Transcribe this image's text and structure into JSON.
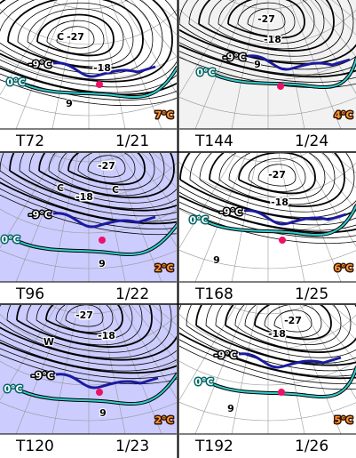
{
  "panels": [
    {
      "step": "T72",
      "date": "1/21",
      "temperature": "7°C",
      "contours": [
        "-27",
        "-18",
        "-9°C",
        "0°C",
        "9"
      ],
      "symbols": [
        "C"
      ]
    },
    {
      "step": "T144",
      "date": "1/24",
      "temperature": "4°C",
      "contours": [
        "-27",
        "-18",
        "-9°C",
        "0°C",
        "9"
      ],
      "symbols": []
    },
    {
      "step": "T96",
      "date": "1/22",
      "temperature": "2°C",
      "contours": [
        "-27",
        "-18",
        "-9°C",
        "0°C",
        "9"
      ],
      "symbols": [
        "C",
        "C"
      ]
    },
    {
      "step": "T168",
      "date": "1/25",
      "temperature": "6°C",
      "contours": [
        "-27",
        "-18",
        "-9°C",
        "0°C",
        "9"
      ],
      "symbols": []
    },
    {
      "step": "T120",
      "date": "1/23",
      "temperature": "2°C",
      "contours": [
        "-27",
        "-18",
        "-9°C",
        "0°C",
        "9"
      ],
      "symbols": [
        "W"
      ]
    },
    {
      "step": "T192",
      "date": "1/26",
      "temperature": "5°C",
      "contours": [
        "-27",
        "-18",
        "-9°C",
        "0°C",
        "9"
      ],
      "symbols": []
    }
  ]
}
